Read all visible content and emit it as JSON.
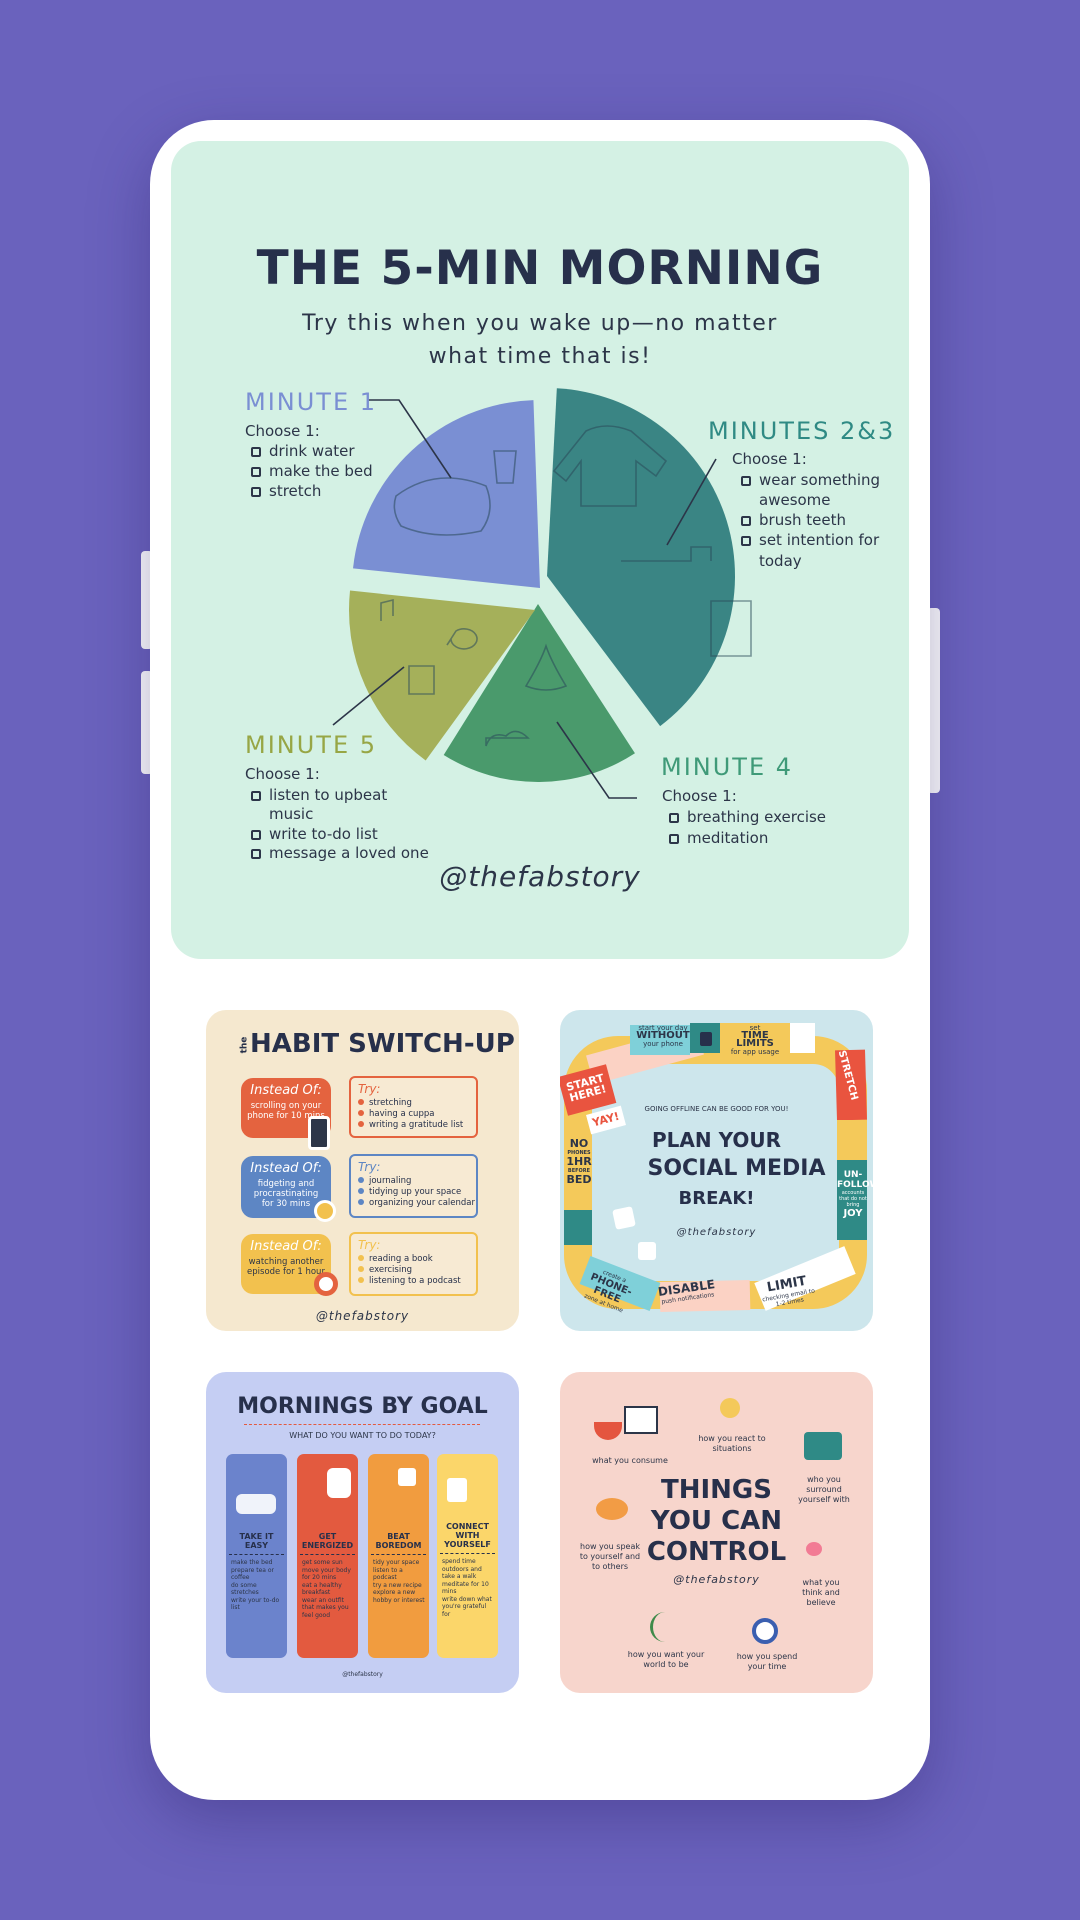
{
  "colors": {
    "background": "#6a62bd",
    "phone": "#ffffff",
    "main_card": "#d4f1e4",
    "minute1": "#7a8fd3",
    "minutes23": "#3a8584",
    "minute4": "#4a9a6c",
    "minute5": "#a5b05a"
  },
  "main": {
    "title": "THE 5-MIN MORNING",
    "subtitle_line1": "Try this when you wake up—no matter",
    "subtitle_line2": "what time that is!",
    "handle": "@thefabstory",
    "minute1": {
      "heading": "MINUTE 1",
      "choose": "Choose 1:",
      "items": [
        "drink water",
        "make the bed",
        "stretch"
      ]
    },
    "minutes23": {
      "heading": "MINUTES 2&3",
      "choose": "Choose 1:",
      "items": [
        "wear something",
        "awesome",
        "brush teeth",
        "set intention for",
        "today"
      ]
    },
    "minute4": {
      "heading": "MINUTE 4",
      "choose": "Choose 1:",
      "items": [
        "breathing exercise",
        "meditation"
      ]
    },
    "minute5": {
      "heading": "MINUTE 5",
      "choose": "Choose 1:",
      "items": [
        "listen to upbeat",
        "music",
        "write to-do list",
        "message a loved one"
      ]
    }
  },
  "habit": {
    "the": "the",
    "title": "HABIT SWITCH-UP",
    "handle": "@thefabstory",
    "rows": [
      {
        "instead": "Instead Of:",
        "text": "scrolling on your phone for 10 mins",
        "try": "Try:",
        "items": [
          "stretching",
          "having a cuppa",
          "writing a gratitude list"
        ],
        "color": "#e4633f"
      },
      {
        "instead": "Instead Of:",
        "text": "fidgeting and procrastinating for 30 mins",
        "try": "Try:",
        "items": [
          "journaling",
          "tidying up your space",
          "organizing your calendar"
        ],
        "color": "#5d86c4"
      },
      {
        "instead": "Instead Of:",
        "text": "watching another episode for 1 hour",
        "try": "Try:",
        "items": [
          "reading a book",
          "exercising",
          "listening to a podcast"
        ],
        "color": "#f2c14e"
      }
    ]
  },
  "social": {
    "kicker": "GOING OFFLINE CAN BE GOOD FOR YOU!",
    "line1": "PLAN YOUR",
    "line2": "SOCIAL MEDIA",
    "line3": "BREAK!",
    "handle": "@thefabstory",
    "tiles": {
      "start": "START HERE!",
      "without_a": "start your day",
      "without_b": "WITHOUT",
      "without_c": "your phone",
      "time_a": "set",
      "time_b": "TIME LIMITS",
      "time_c": "for app usage",
      "stretch": "STRETCH",
      "unfollow_a": "UN-FOLLOW",
      "unfollow_b": "accounts that do not bring",
      "unfollow_c": "JOY",
      "limit_a": "LIMIT",
      "limit_b": "checking email to 1-2 times",
      "disable_a": "DISABLE",
      "disable_b": "push notifications",
      "phonefree_a": "create a",
      "phonefree_b": "PHONE-FREE",
      "phonefree_c": "zone at home",
      "nophones_a": "NO",
      "nophones_b": "PHONES",
      "nophones_c": "1HR",
      "nophones_d": "BEFORE",
      "nophones_e": "BED",
      "yay": "YAY!"
    }
  },
  "goal": {
    "title": "MORNINGS BY GOAL",
    "subtitle": "WHAT DO YOU WANT TO DO TODAY?",
    "handle": "@thefabstory",
    "columns": [
      {
        "heading": "TAKE IT EASY",
        "items": [
          "make the bed",
          "prepare tea or coffee",
          "do some stretches",
          "write your to-do list"
        ],
        "color": "#6b83cc"
      },
      {
        "heading": "GET ENERGIZED",
        "items": [
          "get some sun",
          "move your body for 20 mins",
          "eat a healthy breakfast",
          "wear an outfit that makes you feel good"
        ],
        "color": "#e35a3f"
      },
      {
        "heading": "BEAT BOREDOM",
        "items": [
          "tidy your space",
          "listen to a podcast",
          "try a new recipe",
          "explore a new hobby or interest"
        ],
        "color": "#f19c3f"
      },
      {
        "heading": "CONNECT WITH YOURSELF",
        "items": [
          "spend time outdoors and take a walk",
          "meditate for 10 mins",
          "write down what you're grateful for"
        ],
        "color": "#fbd66a"
      }
    ]
  },
  "control": {
    "line1": "THINGS",
    "line2": "YOU CAN",
    "line3": "CONTROL",
    "handle": "@thefabstory",
    "labels": {
      "consume": "what you consume",
      "react": "how you react to situations",
      "surround": "who you surround yourself with",
      "speak": "how you speak to yourself and to others",
      "think": "what you think and believe",
      "world": "how you want your world to be",
      "time": "how you spend your time"
    }
  }
}
